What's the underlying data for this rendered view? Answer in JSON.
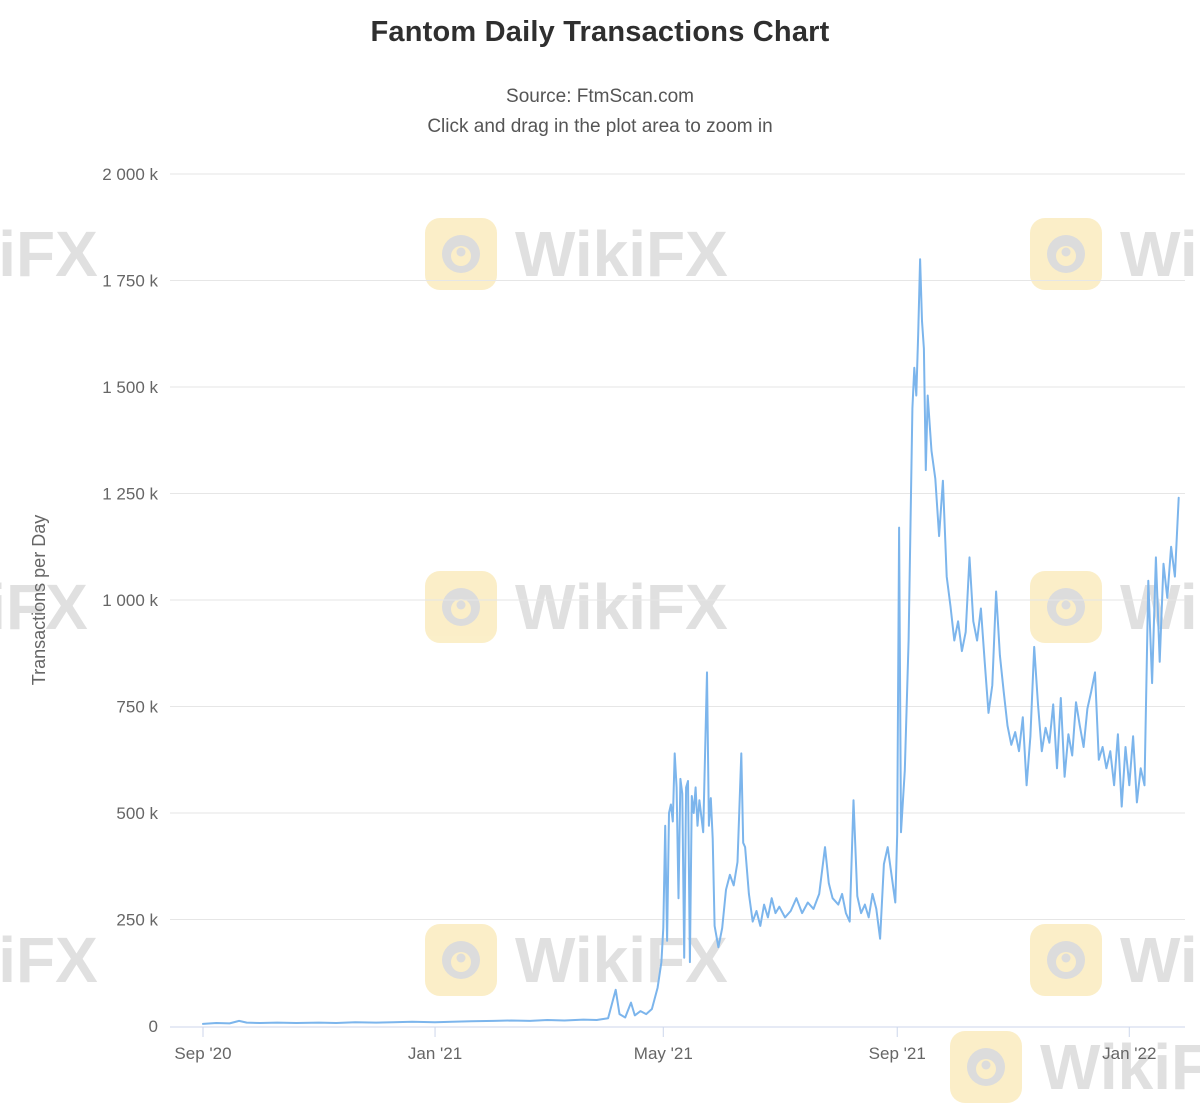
{
  "header": {
    "title": "Fantom Daily Transactions Chart",
    "subtitle_source": "Source: FtmScan.com",
    "subtitle_hint": "Click and drag in the plot area to zoom in"
  },
  "watermark": {
    "text": "WikiFX",
    "logo_color": "#f2c94c"
  },
  "chart_data": {
    "type": "line",
    "title": "Fantom Daily Transactions Chart",
    "subtitle": [
      "Source: FtmScan.com",
      "Click and drag in the plot area to zoom in"
    ],
    "xlabel": "",
    "ylabel": "Transactions per Day",
    "values_unit": "thousands of transactions per day (k)",
    "ylim_k": [
      0,
      2000
    ],
    "grid": "horizontal",
    "legend": "none",
    "series_color": "#7cb5ec",
    "y_ticks": [
      {
        "value_k": 0,
        "label": "0"
      },
      {
        "value_k": 250,
        "label": "250 k"
      },
      {
        "value_k": 500,
        "label": "500 k"
      },
      {
        "value_k": 750,
        "label": "750 k"
      },
      {
        "value_k": 1000,
        "label": "1 000 k"
      },
      {
        "value_k": 1250,
        "label": "1 250 k"
      },
      {
        "value_k": 1500,
        "label": "1 500 k"
      },
      {
        "value_k": 1750,
        "label": "1 750 k"
      },
      {
        "value_k": 2000,
        "label": "2 000 k"
      }
    ],
    "x_ticks": [
      {
        "date": "2020-09-01",
        "label": "Sep '20"
      },
      {
        "date": "2021-01-01",
        "label": "Jan '21"
      },
      {
        "date": "2021-05-01",
        "label": "May '21"
      },
      {
        "date": "2021-09-01",
        "label": "Sep '21"
      },
      {
        "date": "2022-01-01",
        "label": "Jan '22"
      }
    ],
    "series": [
      {
        "name": "Transactions per Day",
        "color": "#7cb5ec",
        "points": [
          [
            "2020-09-01",
            5
          ],
          [
            "2020-09-08",
            7
          ],
          [
            "2020-09-15",
            6
          ],
          [
            "2020-09-20",
            12
          ],
          [
            "2020-09-24",
            8
          ],
          [
            "2020-10-01",
            7
          ],
          [
            "2020-10-10",
            8
          ],
          [
            "2020-10-20",
            7
          ],
          [
            "2020-11-01",
            8
          ],
          [
            "2020-11-10",
            7
          ],
          [
            "2020-11-20",
            9
          ],
          [
            "2020-12-01",
            8
          ],
          [
            "2020-12-10",
            9
          ],
          [
            "2020-12-20",
            10
          ],
          [
            "2021-01-01",
            9
          ],
          [
            "2021-01-10",
            10
          ],
          [
            "2021-01-20",
            11
          ],
          [
            "2021-02-01",
            12
          ],
          [
            "2021-02-10",
            13
          ],
          [
            "2021-02-20",
            12
          ],
          [
            "2021-03-01",
            14
          ],
          [
            "2021-03-10",
            13
          ],
          [
            "2021-03-20",
            15
          ],
          [
            "2021-03-27",
            14
          ],
          [
            "2021-04-02",
            18
          ],
          [
            "2021-04-06",
            85
          ],
          [
            "2021-04-08",
            28
          ],
          [
            "2021-04-11",
            20
          ],
          [
            "2021-04-14",
            55
          ],
          [
            "2021-04-16",
            25
          ],
          [
            "2021-04-19",
            35
          ],
          [
            "2021-04-22",
            28
          ],
          [
            "2021-04-25",
            40
          ],
          [
            "2021-04-28",
            90
          ],
          [
            "2021-04-30",
            150
          ],
          [
            "2021-05-01",
            230
          ],
          [
            "2021-05-02",
            470
          ],
          [
            "2021-05-03",
            200
          ],
          [
            "2021-05-04",
            500
          ],
          [
            "2021-05-05",
            520
          ],
          [
            "2021-05-06",
            480
          ],
          [
            "2021-05-07",
            640
          ],
          [
            "2021-05-08",
            560
          ],
          [
            "2021-05-09",
            300
          ],
          [
            "2021-05-10",
            580
          ],
          [
            "2021-05-11",
            545
          ],
          [
            "2021-05-12",
            160
          ],
          [
            "2021-05-13",
            560
          ],
          [
            "2021-05-14",
            575
          ],
          [
            "2021-05-15",
            150
          ],
          [
            "2021-05-16",
            540
          ],
          [
            "2021-05-17",
            500
          ],
          [
            "2021-05-18",
            560
          ],
          [
            "2021-05-19",
            470
          ],
          [
            "2021-05-20",
            530
          ],
          [
            "2021-05-22",
            455
          ],
          [
            "2021-05-24",
            830
          ],
          [
            "2021-05-25",
            470
          ],
          [
            "2021-05-26",
            535
          ],
          [
            "2021-05-27",
            440
          ],
          [
            "2021-05-28",
            235
          ],
          [
            "2021-05-30",
            185
          ],
          [
            "2021-06-01",
            230
          ],
          [
            "2021-06-03",
            320
          ],
          [
            "2021-06-05",
            355
          ],
          [
            "2021-06-07",
            330
          ],
          [
            "2021-06-09",
            385
          ],
          [
            "2021-06-11",
            640
          ],
          [
            "2021-06-12",
            430
          ],
          [
            "2021-06-13",
            420
          ],
          [
            "2021-06-15",
            310
          ],
          [
            "2021-06-17",
            245
          ],
          [
            "2021-06-19",
            270
          ],
          [
            "2021-06-21",
            235
          ],
          [
            "2021-06-23",
            285
          ],
          [
            "2021-06-25",
            255
          ],
          [
            "2021-06-27",
            300
          ],
          [
            "2021-06-29",
            265
          ],
          [
            "2021-07-01",
            280
          ],
          [
            "2021-07-04",
            255
          ],
          [
            "2021-07-07",
            270
          ],
          [
            "2021-07-10",
            300
          ],
          [
            "2021-07-13",
            265
          ],
          [
            "2021-07-16",
            290
          ],
          [
            "2021-07-19",
            275
          ],
          [
            "2021-07-22",
            310
          ],
          [
            "2021-07-25",
            420
          ],
          [
            "2021-07-27",
            335
          ],
          [
            "2021-07-29",
            300
          ],
          [
            "2021-08-01",
            285
          ],
          [
            "2021-08-03",
            310
          ],
          [
            "2021-08-05",
            265
          ],
          [
            "2021-08-07",
            245
          ],
          [
            "2021-08-09",
            530
          ],
          [
            "2021-08-11",
            305
          ],
          [
            "2021-08-13",
            265
          ],
          [
            "2021-08-15",
            285
          ],
          [
            "2021-08-17",
            255
          ],
          [
            "2021-08-19",
            310
          ],
          [
            "2021-08-21",
            275
          ],
          [
            "2021-08-23",
            205
          ],
          [
            "2021-08-25",
            380
          ],
          [
            "2021-08-27",
            420
          ],
          [
            "2021-08-29",
            355
          ],
          [
            "2021-08-31",
            290
          ],
          [
            "2021-09-01",
            450
          ],
          [
            "2021-09-02",
            1170
          ],
          [
            "2021-09-03",
            455
          ],
          [
            "2021-09-05",
            600
          ],
          [
            "2021-09-07",
            905
          ],
          [
            "2021-09-09",
            1450
          ],
          [
            "2021-09-10",
            1545
          ],
          [
            "2021-09-11",
            1480
          ],
          [
            "2021-09-12",
            1625
          ],
          [
            "2021-09-13",
            1800
          ],
          [
            "2021-09-14",
            1655
          ],
          [
            "2021-09-15",
            1590
          ],
          [
            "2021-09-16",
            1305
          ],
          [
            "2021-09-17",
            1480
          ],
          [
            "2021-09-19",
            1350
          ],
          [
            "2021-09-21",
            1285
          ],
          [
            "2021-09-23",
            1150
          ],
          [
            "2021-09-25",
            1280
          ],
          [
            "2021-09-27",
            1055
          ],
          [
            "2021-09-29",
            985
          ],
          [
            "2021-10-01",
            905
          ],
          [
            "2021-10-03",
            950
          ],
          [
            "2021-10-05",
            880
          ],
          [
            "2021-10-07",
            925
          ],
          [
            "2021-10-09",
            1100
          ],
          [
            "2021-10-11",
            950
          ],
          [
            "2021-10-13",
            905
          ],
          [
            "2021-10-15",
            980
          ],
          [
            "2021-10-17",
            855
          ],
          [
            "2021-10-19",
            735
          ],
          [
            "2021-10-21",
            800
          ],
          [
            "2021-10-23",
            1020
          ],
          [
            "2021-10-25",
            870
          ],
          [
            "2021-10-27",
            785
          ],
          [
            "2021-10-29",
            705
          ],
          [
            "2021-10-31",
            660
          ],
          [
            "2021-11-02",
            690
          ],
          [
            "2021-11-04",
            645
          ],
          [
            "2021-11-06",
            725
          ],
          [
            "2021-11-08",
            565
          ],
          [
            "2021-11-10",
            680
          ],
          [
            "2021-11-12",
            890
          ],
          [
            "2021-11-14",
            755
          ],
          [
            "2021-11-16",
            645
          ],
          [
            "2021-11-18",
            700
          ],
          [
            "2021-11-20",
            665
          ],
          [
            "2021-11-22",
            755
          ],
          [
            "2021-11-24",
            605
          ],
          [
            "2021-11-26",
            770
          ],
          [
            "2021-11-28",
            585
          ],
          [
            "2021-11-30",
            685
          ],
          [
            "2021-12-02",
            635
          ],
          [
            "2021-12-04",
            760
          ],
          [
            "2021-12-06",
            705
          ],
          [
            "2021-12-08",
            655
          ],
          [
            "2021-12-10",
            745
          ],
          [
            "2021-12-12",
            785
          ],
          [
            "2021-12-14",
            830
          ],
          [
            "2021-12-16",
            625
          ],
          [
            "2021-12-18",
            655
          ],
          [
            "2021-12-20",
            605
          ],
          [
            "2021-12-22",
            645
          ],
          [
            "2021-12-24",
            565
          ],
          [
            "2021-12-26",
            685
          ],
          [
            "2021-12-28",
            515
          ],
          [
            "2021-12-30",
            655
          ],
          [
            "2022-01-01",
            565
          ],
          [
            "2022-01-03",
            680
          ],
          [
            "2022-01-05",
            525
          ],
          [
            "2022-01-07",
            605
          ],
          [
            "2022-01-09",
            565
          ],
          [
            "2022-01-11",
            1045
          ],
          [
            "2022-01-13",
            805
          ],
          [
            "2022-01-15",
            1100
          ],
          [
            "2022-01-17",
            855
          ],
          [
            "2022-01-19",
            1085
          ],
          [
            "2022-01-21",
            1005
          ],
          [
            "2022-01-23",
            1125
          ],
          [
            "2022-01-25",
            1055
          ],
          [
            "2022-01-27",
            1240
          ]
        ]
      }
    ]
  }
}
